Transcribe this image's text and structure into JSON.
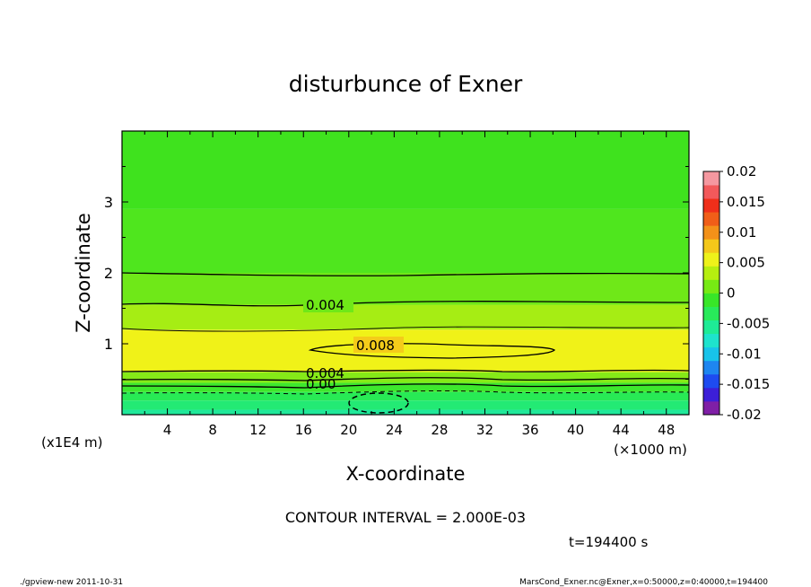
{
  "chart_data": {
    "type": "heatmap",
    "title": "disturbunce of Exner",
    "xlabel": "X-coordinate",
    "ylabel": "Z-coordinate",
    "x_unit_label": "(×1000 m)",
    "y_unit_label": "(x1E4 m)",
    "xlim": [
      0,
      50
    ],
    "ylim": [
      0,
      4
    ],
    "x_ticks": [
      "4",
      "8",
      "12",
      "16",
      "20",
      "24",
      "28",
      "32",
      "36",
      "40",
      "44",
      "48"
    ],
    "y_ticks": [
      "1",
      "2",
      "3"
    ],
    "colorbar": {
      "min": -0.02,
      "max": 0.02,
      "labels": [
        "0.02",
        "0.015",
        "0.01",
        "0.005",
        "0",
        "-0.005",
        "-0.01",
        "-0.015",
        "-0.02"
      ],
      "colors": [
        "#7f1fa6",
        "#3c1fd8",
        "#1e4bf0",
        "#1e86f0",
        "#18c3ea",
        "#1ee3cd",
        "#1eeb96",
        "#28ea5a",
        "#38e628",
        "#77ea14",
        "#b6ee10",
        "#eef21a",
        "#f4c81a",
        "#f39119",
        "#f05e18",
        "#ef2f1a",
        "#f2595b",
        "#f598a0"
      ]
    },
    "bands": [
      {
        "z": [
          0.0,
          0.07
        ],
        "color": "#20e89a"
      },
      {
        "z": [
          0.07,
          0.2
        ],
        "color": "#23ea74"
      },
      {
        "z": [
          0.2,
          0.32
        ],
        "color": "#28ea55"
      },
      {
        "z": [
          0.32,
          0.45
        ],
        "color": "#3ee82d"
      },
      {
        "z": [
          0.45,
          0.6
        ],
        "color": "#85ea18"
      },
      {
        "z": [
          0.6,
          1.2
        ],
        "color": "#f0f218"
      },
      {
        "z": [
          1.2,
          1.55
        ],
        "color": "#a6ed14"
      },
      {
        "z": [
          1.55,
          2.0
        ],
        "color": "#6fe818"
      },
      {
        "z": [
          2.0,
          2.9
        ],
        "color": "#4fe61e"
      },
      {
        "z": [
          2.9,
          4.0
        ],
        "color": "#3fe21e"
      }
    ],
    "contour_labels": [
      "0.004",
      "0.008",
      "0.004",
      "0.00"
    ],
    "annotation": "CONTOUR INTERVAL = 2.000E-03",
    "time_label": "t=194400 s"
  },
  "footer": {
    "left": "./gpview-new   2011-10-31",
    "right": "MarsCond_Exner.nc@Exner,x=0:50000,z=0:40000,t=194400"
  }
}
